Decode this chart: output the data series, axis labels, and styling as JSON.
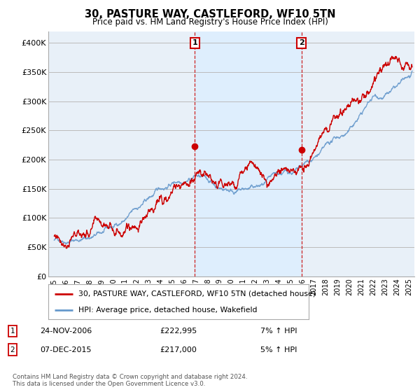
{
  "title": "30, PASTURE WAY, CASTLEFORD, WF10 5TN",
  "subtitle": "Price paid vs. HM Land Registry's House Price Index (HPI)",
  "legend_line1": "30, PASTURE WAY, CASTLEFORD, WF10 5TN (detached house)",
  "legend_line2": "HPI: Average price, detached house, Wakefield",
  "footnote": "Contains HM Land Registry data © Crown copyright and database right 2024.\nThis data is licensed under the Open Government Licence v3.0.",
  "annotation1_label": "1",
  "annotation1_date": "24-NOV-2006",
  "annotation1_price": "£222,995",
  "annotation1_hpi": "7% ↑ HPI",
  "annotation2_label": "2",
  "annotation2_date": "07-DEC-2015",
  "annotation2_price": "£217,000",
  "annotation2_hpi": "5% ↑ HPI",
  "sale1_x": 2006.9,
  "sale1_y": 222995,
  "sale2_x": 2015.93,
  "sale2_y": 217000,
  "line_color_red": "#cc0000",
  "line_color_blue": "#6699cc",
  "dot_color_red": "#cc0000",
  "annotation_box_color": "#cc0000",
  "vline_color": "#cc2222",
  "shade_color": "#ddeeff",
  "background_color": "#ffffff",
  "plot_bg_color": "#e8f0f8",
  "grid_color": "#bbbbbb",
  "ylim": [
    0,
    420000
  ],
  "xlim_start": 1994.5,
  "xlim_end": 2025.5,
  "noise_seed_hpi": 42,
  "noise_seed_prop": 77
}
